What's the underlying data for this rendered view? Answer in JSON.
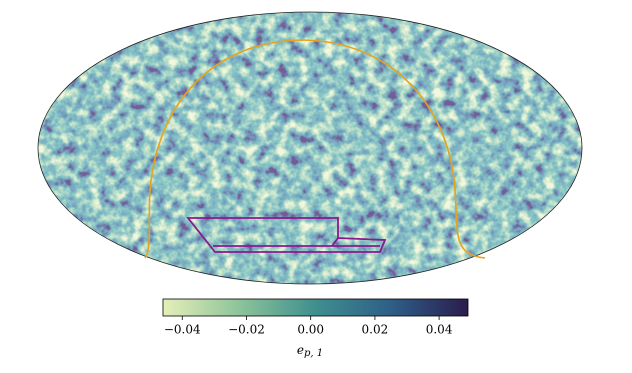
{
  "chart_data": {
    "type": "map",
    "colormap": [
      "#e6efb8",
      "#8cc49a",
      "#3f8f8f",
      "#2e5e88",
      "#2b1c4c"
    ],
    "clim": [
      -0.046,
      0.049
    ],
    "colorbar_ticks": [
      {
        "value": -0.04,
        "label": "−0.04"
      },
      {
        "value": -0.02,
        "label": "−0.02"
      },
      {
        "value": 0,
        "label": "0.00"
      },
      0.02,
      0.04
    ],
    "colorbar_label": {
      "symbol": "e",
      "subscript": "p, 1"
    },
    "outline_color": "#e8a21c",
    "region_color": "#8a1a8c"
  }
}
